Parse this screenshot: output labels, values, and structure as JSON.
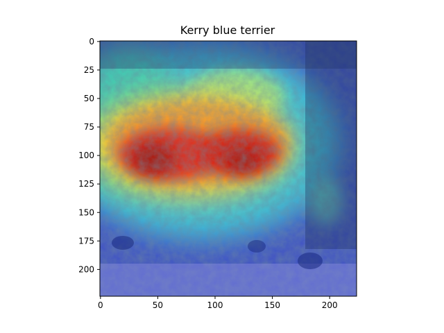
{
  "chart_data": {
    "type": "heatmap",
    "title": "Kerry blue terrier",
    "description_kind": "grad-cam heatmap overlaid on photo",
    "colormap": "jet",
    "xlim": [
      0,
      224
    ],
    "ylim": [
      224,
      0
    ],
    "xticks": [
      0,
      50,
      100,
      150,
      200
    ],
    "yticks": [
      0,
      25,
      50,
      75,
      100,
      125,
      150,
      175,
      200
    ],
    "hotspots": [
      {
        "x": 50,
        "y": 110,
        "intensity": 1.0
      },
      {
        "x": 125,
        "y": 108,
        "intensity": 0.95
      },
      {
        "x": 90,
        "y": 100,
        "intensity": 0.85
      }
    ]
  }
}
